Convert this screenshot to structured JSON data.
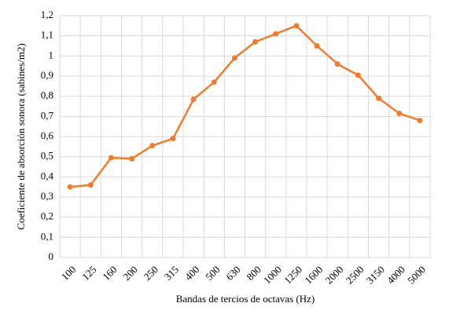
{
  "chart_data": {
    "type": "line",
    "x_label": "Bandas de tercios  de octavas  (Hz)",
    "y_label": "Coeficiente  de absorción  sonora  (sabines/m2)",
    "categories": [
      "100",
      "125",
      "160",
      "200",
      "250",
      "315",
      "400",
      "500",
      "630",
      "800",
      "1000",
      "1250",
      "1600",
      "2000",
      "2500",
      "3150",
      "4000",
      "5000"
    ],
    "series": [
      {
        "name": "Coeficiente",
        "color": "#ed7d31",
        "values": [
          0.35,
          0.36,
          0.495,
          0.49,
          0.555,
          0.59,
          0.785,
          0.87,
          0.99,
          1.07,
          1.11,
          1.15,
          1.05,
          0.96,
          0.905,
          0.79,
          0.715,
          0.68
        ]
      }
    ],
    "ylim": [
      0,
      1.2
    ],
    "yticks": [
      0,
      {
        "value": 0.1,
        "label": "0,1"
      },
      {
        "value": 0.2,
        "label": "0,2"
      },
      {
        "value": 0.3,
        "label": "0,3"
      },
      {
        "value": 0.4,
        "label": "0,4"
      },
      {
        "value": 0.5,
        "label": "0,5"
      },
      {
        "value": 0.6,
        "label": "0,6"
      },
      {
        "value": 0.7,
        "label": "0,7"
      },
      {
        "value": 0.8,
        "label": "0,8"
      },
      {
        "value": 0.9,
        "label": "0,9"
      },
      1,
      {
        "value": 1.1,
        "label": "1,1"
      },
      {
        "value": 1.2,
        "label": "1,2"
      }
    ],
    "grid": true
  }
}
